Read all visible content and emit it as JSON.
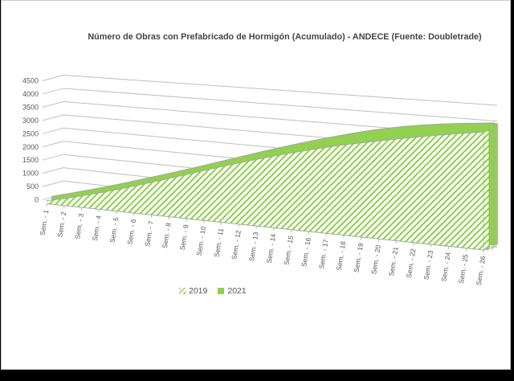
{
  "window": {
    "background": "#ffffff",
    "card_border_color": "#c9c9c9",
    "bottom_bar_color": "#000000"
  },
  "chart_data": {
    "type": "area",
    "projection": "3d-perspective",
    "title": "Número de Obras con Prefabricado de Hormigón (Acumulado) - ANDECE (Fuente: Doubletrade)",
    "categories": [
      "Sem. - 1",
      "Sem. - 2",
      "Sem. - 3",
      "Sem. - 4",
      "Sem. - 5",
      "Sem. - 6",
      "Sem. - 7",
      "Sem. - 8",
      "Sem. - 9",
      "Sem. - 10",
      "Sem. - 11",
      "Sem. - 12",
      "Sem. - 13",
      "Sem. - 14",
      "Sem. - 15",
      "Sem. - 16",
      "Sem. - 17",
      "Sem. - 18",
      "Sem. - 19",
      "Sem. - 20",
      "Sem. - 21",
      "Sem. - 22",
      "Sem. - 23",
      "Sem. - 24",
      "Sem. - 25",
      "Sem. - 26"
    ],
    "series": [
      {
        "name": "2019",
        "style": "hatched",
        "values": [
          120,
          260,
          420,
          580,
          750,
          920,
          1090,
          1260,
          1420,
          1580,
          1730,
          1870,
          2000,
          2120,
          2230,
          2330,
          2420,
          2500,
          2570,
          2630,
          2690,
          2740,
          2790,
          2830,
          2870,
          2900
        ]
      },
      {
        "name": "2021",
        "style": "solid",
        "values": [
          170,
          350,
          530,
          700,
          880,
          1060,
          1230,
          1400,
          1570,
          1740,
          1900,
          2060,
          2210,
          2350,
          2480,
          2600,
          2710,
          2810,
          2900,
          2970,
          3030,
          3070,
          3100,
          3120,
          3130,
          3140
        ]
      }
    ],
    "y_ticks": [
      0,
      500,
      1000,
      1500,
      2000,
      2500,
      3000,
      3500,
      4000,
      4500
    ],
    "ylim": [
      0,
      4500
    ],
    "grid": true,
    "legend_position": "bottom",
    "colors": {
      "green": "#92d050",
      "green_stroke": "#7ebe42",
      "gridline": "#bfbfbf",
      "axis_line": "#a6a6a6",
      "tick_text": "#595959",
      "title_text": "#454545"
    }
  }
}
